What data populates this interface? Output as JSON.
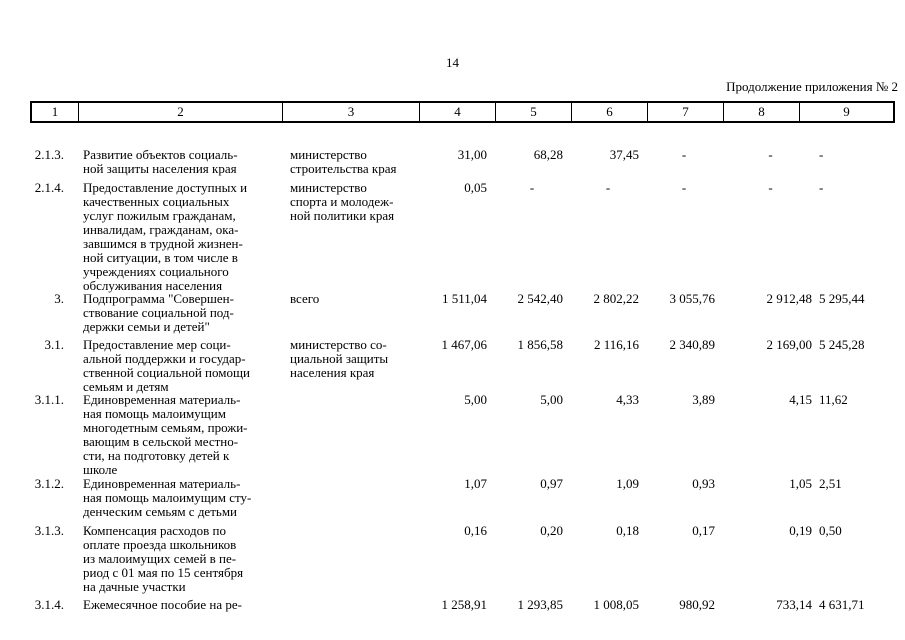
{
  "page_number": "14",
  "continuation_label": "Продолжение приложения № 2",
  "columns": [
    "1",
    "2",
    "3",
    "4",
    "5",
    "6",
    "7",
    "8",
    "9"
  ],
  "rows": [
    {
      "num": "2.1.3.",
      "name": "Развитие объектов социаль-\nной защиты населения края",
      "executor": "министерство\nстроительства края",
      "values": [
        "31,00",
        "68,28",
        "37,45",
        "-",
        "-",
        "-"
      ]
    },
    {
      "num": "2.1.4.",
      "name": "Предоставление доступных и\nкачественных социальных\nуслуг пожилым гражданам,\nинвалидам, гражданам, ока-\nзавшимся в трудной жизнен-\nной ситуации, в том числе в\nучреждениях социального\nобслуживания населения",
      "executor": "министерство\nспорта и молодеж-\nной политики края",
      "values": [
        "0,05",
        "-",
        "-",
        "-",
        "-",
        "-"
      ]
    },
    {
      "num": "3.",
      "name": "Подпрограмма \"Совершен-\nствование социальной под-\nдержки семьи и детей\"",
      "executor": "всего",
      "values": [
        "1 511,04",
        "2 542,40",
        "2 802,22",
        "3 055,76",
        "2 912,48",
        "5 295,44"
      ]
    },
    {
      "num": "3.1.",
      "name": "Предоставление мер соци-\nальной поддержки и государ-\nственной социальной помощи\nсемьям и детям",
      "executor": "министерство со-\nциальной защиты\nнаселения края",
      "values": [
        "1 467,06",
        "1 856,58",
        "2 116,16",
        "2 340,89",
        "2 169,00",
        "5 245,28"
      ]
    },
    {
      "num": "3.1.1.",
      "name": "Единовременная материаль-\nная помощь малоимущим\nмногодетным семьям, прожи-\nвающим в сельской местно-\nсти, на подготовку детей к\nшколе",
      "executor": "",
      "values": [
        "5,00",
        "5,00",
        "4,33",
        "3,89",
        "4,15",
        "11,62"
      ]
    },
    {
      "num": "3.1.2.",
      "name": "Единовременная материаль-\nная помощь малоимущим сту-\nденческим семьям с детьми",
      "executor": "",
      "values": [
        "1,07",
        "0,97",
        "1,09",
        "0,93",
        "1,05",
        "2,51"
      ]
    },
    {
      "num": "3.1.3.",
      "name": "Компенсация расходов по\nоплате проезда школьников\nиз малоимущих семей в пе-\nриод с 01 мая по 15 сентября\nна дачные участки",
      "executor": "",
      "values": [
        "0,16",
        "0,20",
        "0,18",
        "0,17",
        "0,19",
        "0,50"
      ]
    },
    {
      "num": "3.1.4.",
      "name": "Ежемесячное пособие на ре-",
      "executor": "",
      "values": [
        "1 258,91",
        "1 293,85",
        "1 008,05",
        "980,92",
        "733,14",
        "4 631,71"
      ]
    }
  ]
}
